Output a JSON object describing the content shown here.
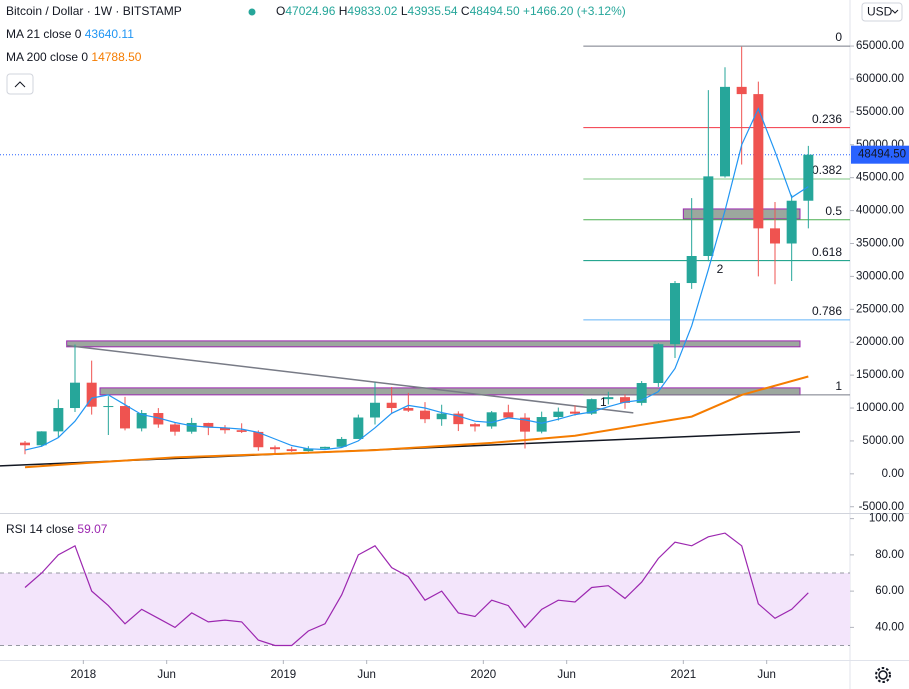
{
  "header": {
    "symbol": "Bitcoin / Dollar · 1W · BITSTAMP",
    "ohlc": [
      {
        "label": "O",
        "value": "47024.96"
      },
      {
        "label": "H",
        "value": "49833.02"
      },
      {
        "label": "L",
        "value": "43935.54"
      },
      {
        "label": "C",
        "value": "48494.50"
      }
    ],
    "change": "+1466.20 (+3.12%)"
  },
  "currency": "USD",
  "chart_data": [
    {
      "type": "candlestick",
      "x": [
        "2017-09",
        "2017-10",
        "2017-11",
        "2017-12",
        "2018-01",
        "2018-02",
        "2018-03",
        "2018-04",
        "2018-05",
        "2018-06",
        "2018-07",
        "2018-08",
        "2018-09",
        "2018-10",
        "2018-11",
        "2018-12",
        "2019-01",
        "2019-02",
        "2019-03",
        "2019-04",
        "2019-05",
        "2019-06",
        "2019-07",
        "2019-08",
        "2019-09",
        "2019-10",
        "2019-11",
        "2019-12",
        "2020-01",
        "2020-02",
        "2020-03",
        "2020-04",
        "2020-05",
        "2020-06",
        "2020-07",
        "2020-08",
        "2020-09",
        "2020-10",
        "2020-11",
        "2020-12",
        "2021-01",
        "2021-02",
        "2021-03",
        "2021-04",
        "2021-05",
        "2021-06",
        "2021-07",
        "2021-08"
      ],
      "open": [
        4740,
        4340,
        6450,
        10000,
        13850,
        10200,
        10300,
        6900,
        9240,
        7500,
        6400,
        7730,
        7030,
        6630,
        6370,
        4040,
        3740,
        3460,
        3850,
        4100,
        5300,
        8560,
        10800,
        10000,
        9600,
        8300,
        9150,
        7550,
        7200,
        9350,
        8540,
        6410,
        8630,
        9450,
        9140,
        11350,
        11650,
        10780,
        13800,
        19700,
        28990,
        33100,
        45200,
        58800,
        57700,
        37300,
        35000,
        41500
      ],
      "high": [
        4980,
        6470,
        11300,
        19650,
        17200,
        11800,
        11700,
        9700,
        9990,
        7760,
        8500,
        7760,
        7410,
        7680,
        6600,
        4300,
        4100,
        4200,
        4140,
        5600,
        9000,
        13900,
        13200,
        12300,
        10900,
        10500,
        9500,
        7750,
        9550,
        10500,
        9200,
        9450,
        10070,
        10400,
        11450,
        12470,
        12070,
        14100,
        19850,
        29300,
        41900,
        58300,
        61780,
        64900,
        59600,
        41300,
        42400,
        49833
      ],
      "low": [
        2970,
        4100,
        5500,
        9400,
        9000,
        5900,
        6600,
        6450,
        7000,
        5800,
        6100,
        5880,
        6100,
        6200,
        3500,
        3130,
        3350,
        3380,
        3730,
        4100,
        5300,
        7500,
        9100,
        9400,
        7700,
        7300,
        6500,
        6430,
        6850,
        8450,
        3850,
        6150,
        8100,
        8850,
        8950,
        10550,
        9880,
        10380,
        13200,
        17600,
        28100,
        32300,
        45000,
        47000,
        30000,
        28800,
        29300,
        37300
      ],
      "close": [
        4340,
        6450,
        10000,
        13850,
        10200,
        10300,
        6900,
        9240,
        7500,
        6400,
        7730,
        7030,
        6630,
        6370,
        4040,
        3740,
        3460,
        3850,
        4100,
        5300,
        8560,
        10800,
        10000,
        9600,
        8300,
        9150,
        7550,
        7200,
        9350,
        8540,
        6410,
        8630,
        9450,
        9140,
        11350,
        11650,
        10780,
        13800,
        19700,
        28990,
        33100,
        45200,
        58800,
        57700,
        37300,
        35000,
        41500,
        48494.5
      ],
      "up_color": "#26a69a",
      "down_color": "#ef5350",
      "xlim": [
        "2017-08",
        "2021-11"
      ],
      "xticks": [
        {
          "value": "2018-01",
          "label": "2018"
        },
        {
          "value": "2018-06",
          "label": "Jun"
        },
        {
          "value": "2019-01",
          "label": "2019"
        },
        {
          "value": "2019-06",
          "label": "Jun"
        },
        {
          "value": "2020-01",
          "label": "2020"
        },
        {
          "value": "2020-06",
          "label": "Jun"
        },
        {
          "value": "2021-01",
          "label": "2021"
        },
        {
          "value": "2021-06",
          "label": "Jun"
        }
      ],
      "ylim": [
        -5800,
        72000
      ],
      "yticks": [
        {
          "value": -5000,
          "label": "-5000.00"
        },
        {
          "value": 0,
          "label": "0.00"
        },
        {
          "value": 5000,
          "label": "5000.00"
        },
        {
          "value": 10000,
          "label": "10000.00"
        },
        {
          "value": 15000,
          "label": "15000.00"
        },
        {
          "value": 20000,
          "label": "20000.00"
        },
        {
          "value": 25000,
          "label": "25000.00"
        },
        {
          "value": 30000,
          "label": "30000.00"
        },
        {
          "value": 35000,
          "label": "35000.00"
        },
        {
          "value": 40000,
          "label": "40000.00"
        },
        {
          "value": 45000,
          "label": "45000.00"
        },
        {
          "value": 50000,
          "label": "50000.00"
        },
        {
          "value": 55000,
          "label": "55000.00"
        },
        {
          "value": 60000,
          "label": "60000.00"
        },
        {
          "value": 65000,
          "label": "65000.00"
        }
      ],
      "last_price": {
        "value": 48494.5,
        "label": "48494.50",
        "color": "#2962ff"
      },
      "series": [
        {
          "name": "MA 21 close 0",
          "value_label": "43640.11",
          "color": "#2196f3",
          "x": [
            "2017-09",
            "2017-10",
            "2017-11",
            "2017-12",
            "2018-01",
            "2018-02",
            "2018-03",
            "2018-04",
            "2018-05",
            "2018-06",
            "2018-07",
            "2018-08",
            "2018-09",
            "2018-10",
            "2018-11",
            "2018-12",
            "2019-01",
            "2019-02",
            "2019-03",
            "2019-04",
            "2019-05",
            "2019-06",
            "2019-07",
            "2019-08",
            "2019-09",
            "2019-10",
            "2019-11",
            "2019-12",
            "2020-01",
            "2020-02",
            "2020-03",
            "2020-04",
            "2020-05",
            "2020-06",
            "2020-07",
            "2020-08",
            "2020-09",
            "2020-10",
            "2020-11",
            "2020-12",
            "2021-01",
            "2021-02",
            "2021-03",
            "2021-04",
            "2021-05",
            "2021-06",
            "2021-07",
            "2021-08"
          ],
          "values": [
            3600,
            4200,
            5500,
            8000,
            11500,
            12000,
            10500,
            9000,
            8500,
            7800,
            7300,
            7100,
            7000,
            6800,
            6300,
            5300,
            4300,
            3800,
            3700,
            4000,
            5000,
            7000,
            9200,
            10400,
            10000,
            9300,
            8800,
            8000,
            7800,
            8500,
            8200,
            7700,
            8300,
            9000,
            9400,
            10200,
            10900,
            11200,
            12500,
            16000,
            22500,
            31000,
            40000,
            50000,
            55500,
            49000,
            42000,
            43640.11
          ]
        },
        {
          "name": "MA 200 close 0",
          "value_label": "14788.50",
          "color": "#f57c00",
          "x": [
            "2017-09",
            "2018-01",
            "2018-06",
            "2019-01",
            "2019-06",
            "2020-01",
            "2020-06",
            "2021-01",
            "2021-04",
            "2021-08"
          ],
          "values": [
            1000,
            1700,
            2500,
            3100,
            3600,
            4700,
            5800,
            8700,
            12000,
            14788.5
          ]
        }
      ],
      "fib_start": "2020-07",
      "fib": [
        {
          "ratio": 0,
          "price": 65000,
          "color": "#787b86"
        },
        {
          "ratio": 0.236,
          "price": 52600,
          "color": "#f23645"
        },
        {
          "ratio": 0.382,
          "price": 44800,
          "color": "#81c784"
        },
        {
          "ratio": 0.5,
          "price": 38600,
          "color": "#4caf50"
        },
        {
          "ratio": 0.618,
          "price": 32400,
          "color": "#089981"
        },
        {
          "ratio": 0.786,
          "price": 23400,
          "color": "#64b5f6"
        },
        {
          "ratio": 1,
          "price": 12000,
          "color": "#787b86"
        }
      ],
      "zones": [
        {
          "x0": "2017-12",
          "x1": "2021-08",
          "y0": 19300,
          "y1": 20200
        },
        {
          "x0": "2018-02",
          "x1": "2021-08",
          "y0": 12000,
          "y1": 13060
        },
        {
          "x0": "2021-01",
          "x1": "2021-08",
          "y0": 38730,
          "y1": 40250
        }
      ],
      "trendlines": [
        {
          "x0": "2017-12",
          "y0": 19500,
          "x1": "2020-10",
          "y1": 9270,
          "color": "#787b86"
        },
        {
          "x0": "2017-08",
          "y0": 1200,
          "x1": "2021-08",
          "y1": 6380,
          "color": "#131722"
        }
      ],
      "labels": [
        {
          "text": "1",
          "x": "2020-08",
          "y": 10800,
          "color": "#131722"
        },
        {
          "text": "2",
          "x": "2021-03",
          "y": 31000,
          "color": "#64b5f6"
        }
      ]
    },
    {
      "type": "line",
      "title": "RSI 14 close",
      "value_label": "59.07",
      "color": "#9c27b0",
      "x": [
        "2017-09",
        "2017-10",
        "2017-11",
        "2017-12",
        "2018-01",
        "2018-02",
        "2018-03",
        "2018-04",
        "2018-05",
        "2018-06",
        "2018-07",
        "2018-08",
        "2018-09",
        "2018-10",
        "2018-11",
        "2018-12",
        "2019-01",
        "2019-02",
        "2019-03",
        "2019-04",
        "2019-05",
        "2019-06",
        "2019-07",
        "2019-08",
        "2019-09",
        "2019-10",
        "2019-11",
        "2019-12",
        "2020-01",
        "2020-02",
        "2020-03",
        "2020-04",
        "2020-05",
        "2020-06",
        "2020-07",
        "2020-08",
        "2020-09",
        "2020-10",
        "2020-11",
        "2020-12",
        "2021-01",
        "2021-02",
        "2021-03",
        "2021-04",
        "2021-05",
        "2021-06",
        "2021-07",
        "2021-08"
      ],
      "values": [
        62,
        70,
        80,
        85,
        60,
        52,
        42,
        50,
        45,
        40,
        48,
        43,
        44,
        43,
        33,
        30,
        30,
        38,
        42,
        58,
        80,
        85,
        73,
        68,
        55,
        60,
        48,
        46,
        55,
        52,
        40,
        50,
        55,
        54,
        62,
        63,
        56,
        65,
        78,
        87,
        85,
        90,
        92,
        85,
        53,
        45,
        50,
        59.07
      ],
      "ylim": [
        22,
        102
      ],
      "yticks": [
        {
          "value": 40,
          "label": "40.00"
        },
        {
          "value": 60,
          "label": "60.00"
        },
        {
          "value": 80,
          "label": "80.00"
        },
        {
          "value": 100,
          "label": "100.00"
        }
      ],
      "band": [
        30,
        70
      ],
      "band_color": "#f3e5fb"
    }
  ]
}
